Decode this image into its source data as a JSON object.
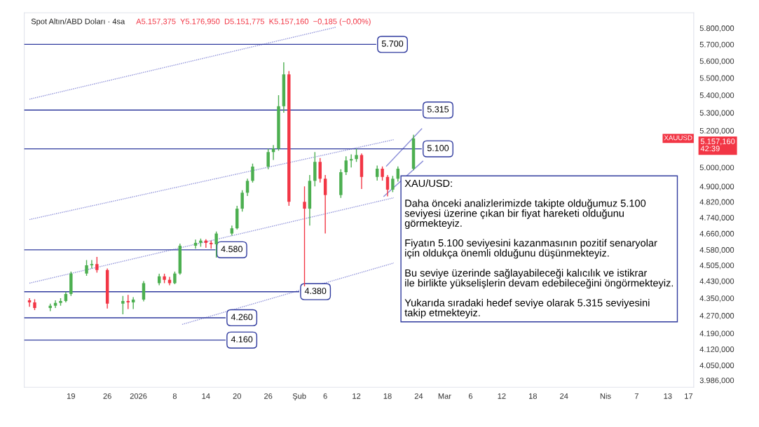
{
  "chart_data": {
    "type": "candlestick",
    "title": "Spot Altın/ABD Doları · 4sa",
    "subtitle": "A5.157,375  Y5.176,950  D5.151,775  K5.157,160  −0,185 (−0,00%)",
    "x": [
      "2025-12-11",
      "2025-12-12",
      "2025-12-15",
      "2025-12-16",
      "2025-12-17",
      "2025-12-18",
      "2025-12-19",
      "2025-12-22",
      "2025-12-23",
      "2025-12-24",
      "2025-12-26",
      "2025-12-29",
      "2025-12-30",
      "2025-12-31",
      "2026-01-02",
      "2026-01-05",
      "2026-01-06",
      "2026-01-07",
      "2026-01-08",
      "2026-01-09",
      "2026-01-12",
      "2026-01-13",
      "2026-01-14",
      "2026-01-15",
      "2026-01-16",
      "2026-01-19",
      "2026-01-20",
      "2026-01-21",
      "2026-01-22",
      "2026-01-23",
      "2026-01-26",
      "2026-01-27",
      "2026-01-28",
      "2026-01-29",
      "2026-01-30",
      "2026-02-02",
      "2026-02-03",
      "2026-02-04",
      "2026-02-05",
      "2026-02-06",
      "2026-02-09",
      "2026-02-10",
      "2026-02-11",
      "2026-02-12",
      "2026-02-13",
      "2026-02-16",
      "2026-02-17",
      "2026-02-18",
      "2026-02-19",
      "2026-02-20",
      "2026-02-23"
    ],
    "ohlc": [
      [
        4340,
        4350,
        4310,
        4330
      ],
      [
        4330,
        4345,
        4295,
        4305
      ],
      [
        4305,
        4325,
        4290,
        4315
      ],
      [
        4315,
        4340,
        4305,
        4328
      ],
      [
        4328,
        4350,
        4315,
        4337
      ],
      [
        4337,
        4380,
        4330,
        4369
      ],
      [
        4369,
        4475,
        4360,
        4466
      ],
      [
        4466,
        4530,
        4455,
        4505
      ],
      [
        4505,
        4530,
        4490,
        4511
      ],
      [
        4511,
        4545,
        4470,
        4482
      ],
      [
        4482,
        4490,
        4302,
        4325
      ],
      [
        4325,
        4360,
        4276,
        4337
      ],
      [
        4337,
        4365,
        4300,
        4330
      ],
      [
        4330,
        4355,
        4300,
        4343
      ],
      [
        4343,
        4430,
        4335,
        4420
      ],
      [
        4420,
        4465,
        4410,
        4452
      ],
      [
        4452,
        4465,
        4420,
        4436
      ],
      [
        4436,
        4450,
        4410,
        4420
      ],
      [
        4420,
        4475,
        4415,
        4466
      ],
      [
        4466,
        4610,
        4460,
        4600
      ],
      [
        4600,
        4630,
        4585,
        4614
      ],
      [
        4614,
        4635,
        4595,
        4625
      ],
      [
        4625,
        4632,
        4590,
        4614
      ],
      [
        4614,
        4625,
        4585,
        4607
      ],
      [
        4607,
        4670,
        4542,
        4660
      ],
      [
        4660,
        4700,
        4650,
        4686
      ],
      [
        4686,
        4800,
        4680,
        4785
      ],
      [
        4785,
        4880,
        4770,
        4867
      ],
      [
        4867,
        4940,
        4850,
        4929
      ],
      [
        4929,
        5020,
        4920,
        5004
      ],
      [
        5004,
        5100,
        4990,
        5082
      ],
      [
        5082,
        5120,
        5040,
        5100
      ],
      [
        5100,
        5400,
        5090,
        5337
      ],
      [
        5337,
        5592,
        5300,
        5521
      ],
      [
        5521,
        5540,
        4800,
        4820
      ],
      [
        4820,
        4900,
        4405,
        4785
      ],
      [
        4785,
        4960,
        4700,
        4929
      ],
      [
        4929,
        5082,
        4900,
        5030
      ],
      [
        5030,
        5050,
        4920,
        4940
      ],
      [
        4940,
        4960,
        4660,
        4855
      ],
      [
        4855,
        4990,
        4840,
        4975
      ],
      [
        4975,
        5060,
        4960,
        5037
      ],
      [
        5037,
        5070,
        5000,
        5045
      ],
      [
        5045,
        5100,
        5030,
        5066
      ],
      [
        5066,
        5075,
        4886,
        4950
      ],
      [
        4950,
        5010,
        4930,
        4993
      ],
      [
        4993,
        5005,
        4930,
        4950
      ],
      [
        4950,
        4960,
        4848,
        4883
      ],
      [
        4883,
        4955,
        4870,
        4940
      ],
      [
        4940,
        5005,
        4925,
        4993
      ],
      [
        4993,
        5177,
        4985,
        5157
      ]
    ],
    "colors": [
      "#f23645",
      "#f23645",
      "#4caf50",
      "#4caf50",
      "#4caf50",
      "#4caf50",
      "#4caf50",
      "#4caf50",
      "#4caf50",
      "#f23645",
      "#f23645",
      "#4caf50",
      "#f23645",
      "#4caf50",
      "#4caf50",
      "#4caf50",
      "#f23645",
      "#f23645",
      "#4caf50",
      "#4caf50",
      "#4caf50",
      "#4caf50",
      "#f23645",
      "#f23645",
      "#4caf50",
      "#4caf50",
      "#4caf50",
      "#4caf50",
      "#4caf50",
      "#4caf50",
      "#4caf50",
      "#4caf50",
      "#4caf50",
      "#4caf50",
      "#f23645",
      "#f23645",
      "#4caf50",
      "#4caf50",
      "#f23645",
      "#f23645",
      "#4caf50",
      "#4caf50",
      "#4caf50",
      "#4caf50",
      "#f23645",
      "#4caf50",
      "#f23645",
      "#f23645",
      "#4caf50",
      "#4caf50",
      "#4caf50"
    ],
    "series": [
      {
        "type": "line",
        "color": "#8c8fd8",
        "line_style": "dotted",
        "x": [
          "2025-12-11",
          "2026-02-08"
        ],
        "values": [
          5377,
          5805
        ]
      },
      {
        "type": "line",
        "color": "#8c8fd8",
        "line_style": "dotted",
        "x": [
          "2025-12-11",
          "2026-02-19T05:00"
        ],
        "values": [
          4730,
          5150
        ]
      },
      {
        "type": "line",
        "color": "#8c8fd8",
        "line_style": "dotted",
        "x": [
          "2025-12-11",
          "2026-02-19T05:00"
        ],
        "values": [
          4420,
          4841
        ]
      },
      {
        "type": "line",
        "color": "#8c8fd8",
        "line_style": "dotted",
        "x": [
          "2026-01-09T10:00",
          "2026-02-19T05:00"
        ],
        "values": [
          4230,
          4516
        ]
      },
      {
        "type": "line",
        "color": "#8c8fd8",
        "line_style": "solid",
        "x": [
          "2026-02-17T19:00",
          "2026-02-24T14:00"
        ],
        "values": [
          5007,
          5210
        ]
      },
      {
        "type": "line",
        "color": "#8c8fd8",
        "line_style": "solid",
        "x": [
          "2026-02-17T07:00",
          "2026-02-24T19:00"
        ],
        "values": [
          4848,
          5033
        ]
      }
    ],
    "ref_lines": [
      {
        "axis": "y",
        "value": 5700,
        "label": "5.700",
        "color": "#2f3a9e"
      },
      {
        "axis": "y",
        "value": 5315,
        "label": "5.315",
        "color": "#2f3a9e"
      },
      {
        "axis": "y",
        "value": 5100,
        "label": "5.100",
        "color": "#2f3a9e"
      },
      {
        "axis": "y",
        "value": 4580,
        "label": "4.580",
        "color": "#2f3a9e"
      },
      {
        "axis": "y",
        "value": 4380,
        "label": "4.380",
        "color": "#2f3a9e"
      },
      {
        "axis": "y",
        "value": 4260,
        "label": "4.260",
        "color": "#2f3a9e"
      },
      {
        "axis": "y",
        "value": 4160,
        "label": "4.160",
        "color": "#2f3a9e"
      }
    ],
    "annotations": [
      "XAU/USD:\n\nDaha önceki analizlerimizde takipte olduğumuz 5.100\nseviyesi üzerine çıkan bir fiyat hareketi olduğunu\ngörmekteyiz.\n\nFiyatın 5.100 seviyesini kazanmasının pozitif senaryolar\niçin oldukça önemli olduğunu düşünmekteyiz.\n\nBu seviye üzerinde sağlayabileceği kalıcılık ve istikrar\nile birlikte yükselişlerin devam edebileceğini öngörmekteyiz.\n\nYukarıda sıradaki hedef seviye olarak 5.315 seviyesini\ntakip etmekteyiz.",
      "XAUUSD",
      "5.157,160\n42:39"
    ],
    "log": true,
    "xlim": [
      "2025-12-10",
      "2026-04-18"
    ],
    "ylim": [
      3956,
      5895
    ],
    "xticks": [
      {
        "value": "2025-12-19",
        "label": "19"
      },
      {
        "value": "2025-12-26",
        "label": "26"
      },
      {
        "value": "2026-01-01",
        "label": "2026"
      },
      {
        "value": "2026-01-08",
        "label": "8"
      },
      {
        "value": "2026-01-14",
        "label": "14"
      },
      {
        "value": "2026-01-20",
        "label": "20"
      },
      {
        "value": "2026-01-26",
        "label": "26"
      },
      {
        "value": "2026-02-01",
        "label": "Şub"
      },
      {
        "value": "2026-02-06",
        "label": "6"
      },
      {
        "value": "2026-02-12",
        "label": "12"
      },
      {
        "value": "2026-02-18",
        "label": "18"
      },
      {
        "value": "2026-02-24",
        "label": "24"
      },
      {
        "value": "2026-03-01",
        "label": "Mar"
      },
      {
        "value": "2026-03-06",
        "label": "6"
      },
      {
        "value": "2026-03-12",
        "label": "12"
      },
      {
        "value": "2026-03-18",
        "label": "18"
      },
      {
        "value": "2026-03-24",
        "label": "24"
      },
      {
        "value": "2026-04-01",
        "label": "Nis"
      },
      {
        "value": "2026-04-07",
        "label": "7"
      },
      {
        "value": "2026-04-13",
        "label": "13"
      },
      {
        "value": "2026-04-17",
        "label": "17"
      }
    ],
    "yticks": [
      {
        "value": 5800,
        "label": "5.800,000"
      },
      {
        "value": 5700,
        "label": "5.700,000"
      },
      {
        "value": 5600,
        "label": "5.600,000"
      },
      {
        "value": 5500,
        "label": "5.500,000"
      },
      {
        "value": 5400,
        "label": "5.400,000"
      },
      {
        "value": 5300,
        "label": "5.300,000"
      },
      {
        "value": 5200,
        "label": "5.200,000"
      },
      {
        "value": 5000,
        "label": "5.000,000"
      },
      {
        "value": 4900,
        "label": "4.900,000"
      },
      {
        "value": 4820,
        "label": "4.820,000"
      },
      {
        "value": 4740,
        "label": "4.740,000"
      },
      {
        "value": 4660,
        "label": "4.660,000"
      },
      {
        "value": 4580,
        "label": "4.580,000"
      },
      {
        "value": 4505,
        "label": "4.505,000"
      },
      {
        "value": 4430,
        "label": "4.430,000"
      },
      {
        "value": 4350,
        "label": "4.350,000"
      },
      {
        "value": 4270,
        "label": "4.270,000"
      },
      {
        "value": 4190,
        "label": "4.190,000"
      },
      {
        "value": 4120,
        "label": "4.120,000"
      },
      {
        "value": 4050,
        "label": "4.050,000"
      },
      {
        "value": 3986,
        "label": "3.986,000"
      }
    ]
  }
}
